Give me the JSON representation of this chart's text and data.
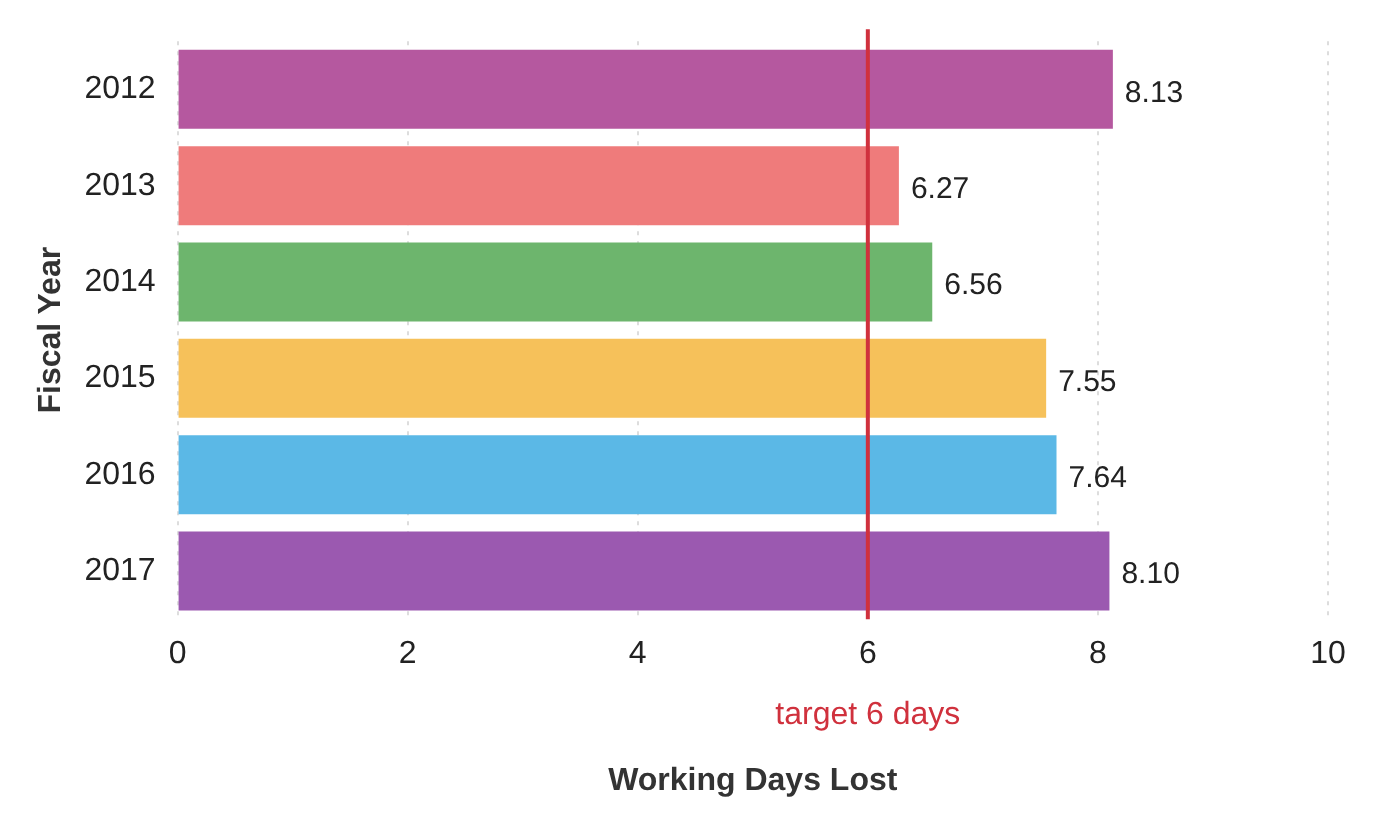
{
  "chart_data": {
    "type": "bar",
    "orientation": "horizontal",
    "xlabel": "Working Days Lost",
    "ylabel": "Fiscal Year",
    "categories": [
      "2012",
      "2013",
      "2014",
      "2015",
      "2016",
      "2017"
    ],
    "values": [
      8.13,
      6.27,
      6.56,
      7.55,
      7.64,
      8.1
    ],
    "value_labels": [
      "8.13",
      "6.27",
      "6.56",
      "7.55",
      "7.64",
      "8.10"
    ],
    "colors": [
      "#b5589f",
      "#ef7b7b",
      "#6db56d",
      "#f6c15a",
      "#5bb8e6",
      "#9b59b0"
    ],
    "xlim": [
      0,
      10
    ],
    "xticks": [
      0,
      2,
      4,
      6,
      8,
      10
    ],
    "grid": "x",
    "legend": false,
    "ref_lines": [
      {
        "axis": "x",
        "value": 6,
        "label": "target 6 days",
        "color": "#d0313d"
      }
    ]
  }
}
